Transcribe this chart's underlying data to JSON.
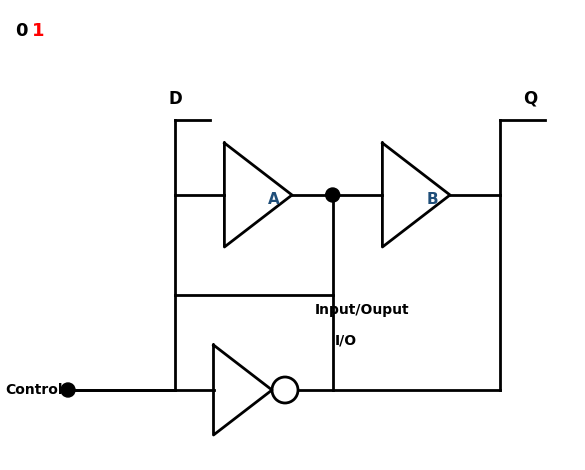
{
  "title_0": "0",
  "title_1": "1",
  "title_0_color": "#000000",
  "title_1_color": "#ff0000",
  "label_D": "D",
  "label_Q": "Q",
  "label_A": "A",
  "label_B": "B",
  "label_Control": "Control",
  "label_io1": "Input/Ouput",
  "label_io2": "I/O",
  "label_A_color": "#1f4e79",
  "label_B_color": "#1f4e79",
  "line_color": "#000000",
  "line_width": 2.0,
  "bg_color": "#ffffff"
}
